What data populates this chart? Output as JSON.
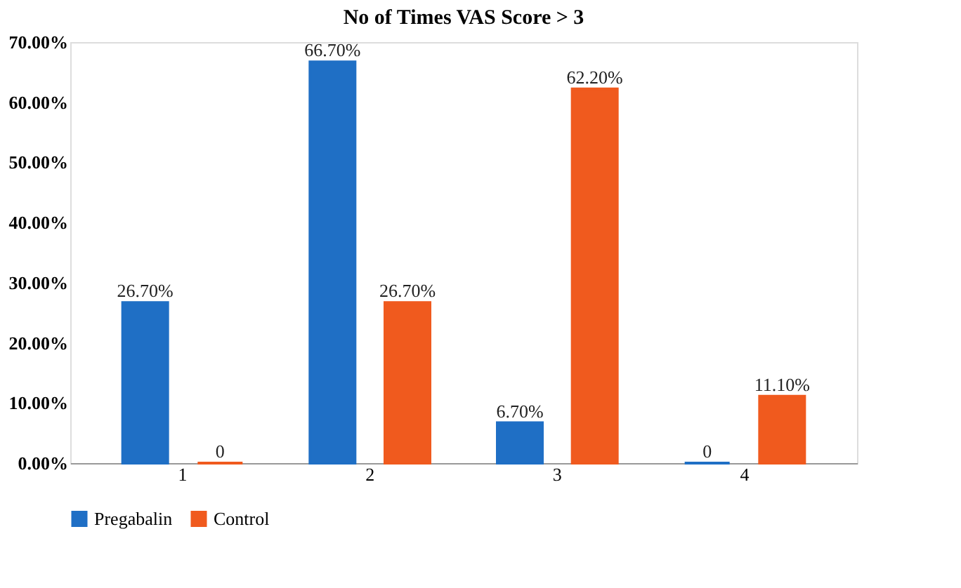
{
  "chart_data": {
    "type": "bar",
    "title": "No of Times VAS Score > 3",
    "categories": [
      "1",
      "2",
      "3",
      "4"
    ],
    "series": [
      {
        "name": "Pregabalin",
        "color": "#1f6fc5",
        "values": [
          26.7,
          66.7,
          6.7,
          0
        ],
        "value_labels": [
          "26.70%",
          "66.70%",
          "6.70%",
          "0"
        ]
      },
      {
        "name": "Control",
        "color": "#f05a1e",
        "values": [
          0,
          26.7,
          62.2,
          11.1
        ],
        "value_labels": [
          "0",
          "26.70%",
          "62.20%",
          "11.10%"
        ]
      }
    ],
    "ylim": [
      0,
      70
    ],
    "yticks": [
      {
        "value": 0,
        "label": "0.00%"
      },
      {
        "value": 10,
        "label": "10.00%"
      },
      {
        "value": 20,
        "label": "20.00%"
      },
      {
        "value": 30,
        "label": "30.00%"
      },
      {
        "value": 40,
        "label": "40.00%"
      },
      {
        "value": 50,
        "label": "50.00%"
      },
      {
        "value": 60,
        "label": "60.00%"
      },
      {
        "value": 70,
        "label": "70.00%"
      }
    ],
    "legend": "bottom"
  }
}
